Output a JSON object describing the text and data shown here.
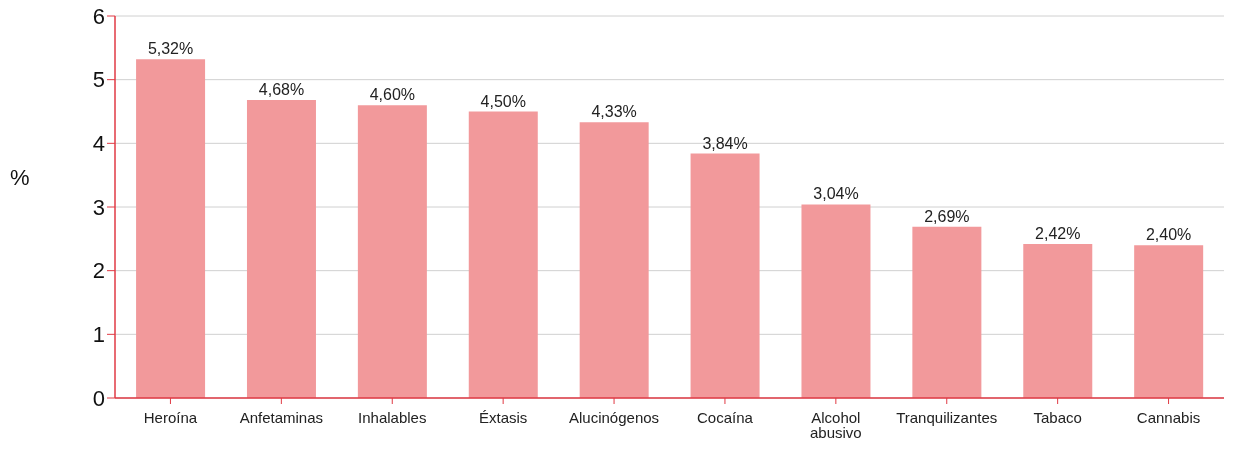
{
  "chart_data": {
    "type": "bar",
    "ylabel": "%",
    "categories": [
      "Heroína",
      "Anfetaminas",
      "Inhalables",
      "Éxtasis",
      "Alucinógenos",
      "Cocaína",
      "Alcohol abusivo",
      "Tranquilizantes",
      "Tabaco",
      "Cannabis"
    ],
    "values": [
      5.32,
      4.68,
      4.6,
      4.5,
      4.33,
      3.84,
      3.04,
      2.69,
      2.42,
      2.4
    ],
    "value_labels": [
      "5,32%",
      "4,68%",
      "4,60%",
      "4,50%",
      "4,33%",
      "3,84%",
      "3,04%",
      "2,69%",
      "2,42%",
      "2,40%"
    ],
    "color": "#f2999b",
    "ylim": [
      0,
      6
    ],
    "yticks": [
      0,
      1,
      2,
      3,
      4,
      5,
      6
    ],
    "grid": "y"
  }
}
